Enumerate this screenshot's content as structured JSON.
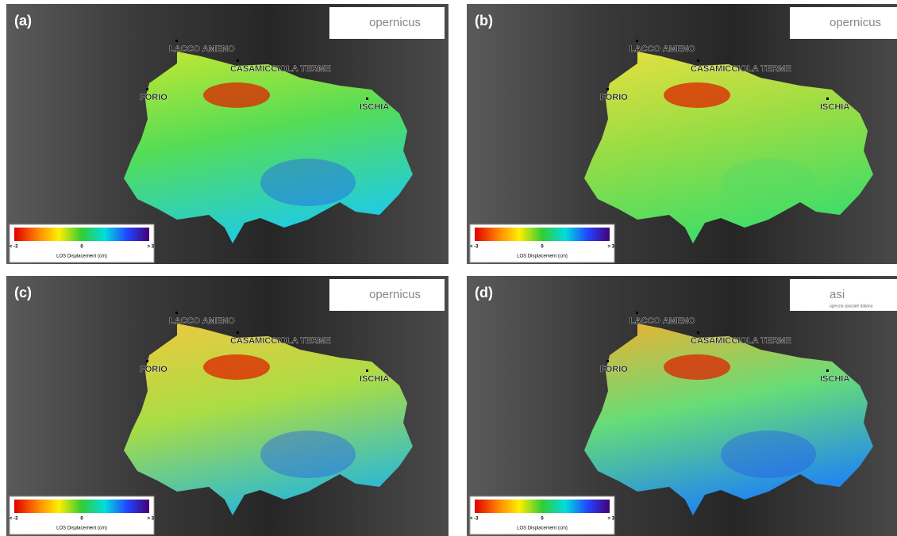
{
  "panels": [
    {
      "label": "(a)",
      "logo": {
        "text": "opernicus"
      },
      "places": [
        "LACCO AMENO",
        "CASAMICCIOLA TERME",
        "FORIO",
        "ISCHIA"
      ],
      "colorbar": {
        "labels": [
          "< -3",
          "0",
          "> 3"
        ],
        "title": "LOS Displacement  (cm)"
      }
    },
    {
      "label": "(b)",
      "logo": {
        "text": "opernicus"
      },
      "places": [
        "LACCO AMENO",
        "CASAMICCIOLA TERME",
        "FORIO",
        "ISCHIA"
      ],
      "colorbar": {
        "labels": [
          "< -3",
          "0",
          "> 3"
        ],
        "title": "LOS Displacement  (cm)"
      }
    },
    {
      "label": "(c)",
      "logo": {
        "text": "opernicus"
      },
      "places": [
        "LACCO AMENO",
        "CASAMICCIOLA TERME",
        "FORIO",
        "ISCHIA"
      ],
      "colorbar": {
        "labels": [
          "< -3",
          "0",
          "> 3"
        ],
        "title": "LOS Displacement  (cm)"
      }
    },
    {
      "label": "(d)",
      "logo": {
        "text": "asi",
        "subtext": "agenzia spaziale italiana"
      },
      "places": [
        "LACCO AMENO",
        "CASAMICCIOLA TERME",
        "FORIO",
        "ISCHIA"
      ],
      "colorbar": {
        "labels": [
          "< -3",
          "0",
          "> 3"
        ],
        "title": "LOS Displacement  (cm)"
      }
    }
  ]
}
